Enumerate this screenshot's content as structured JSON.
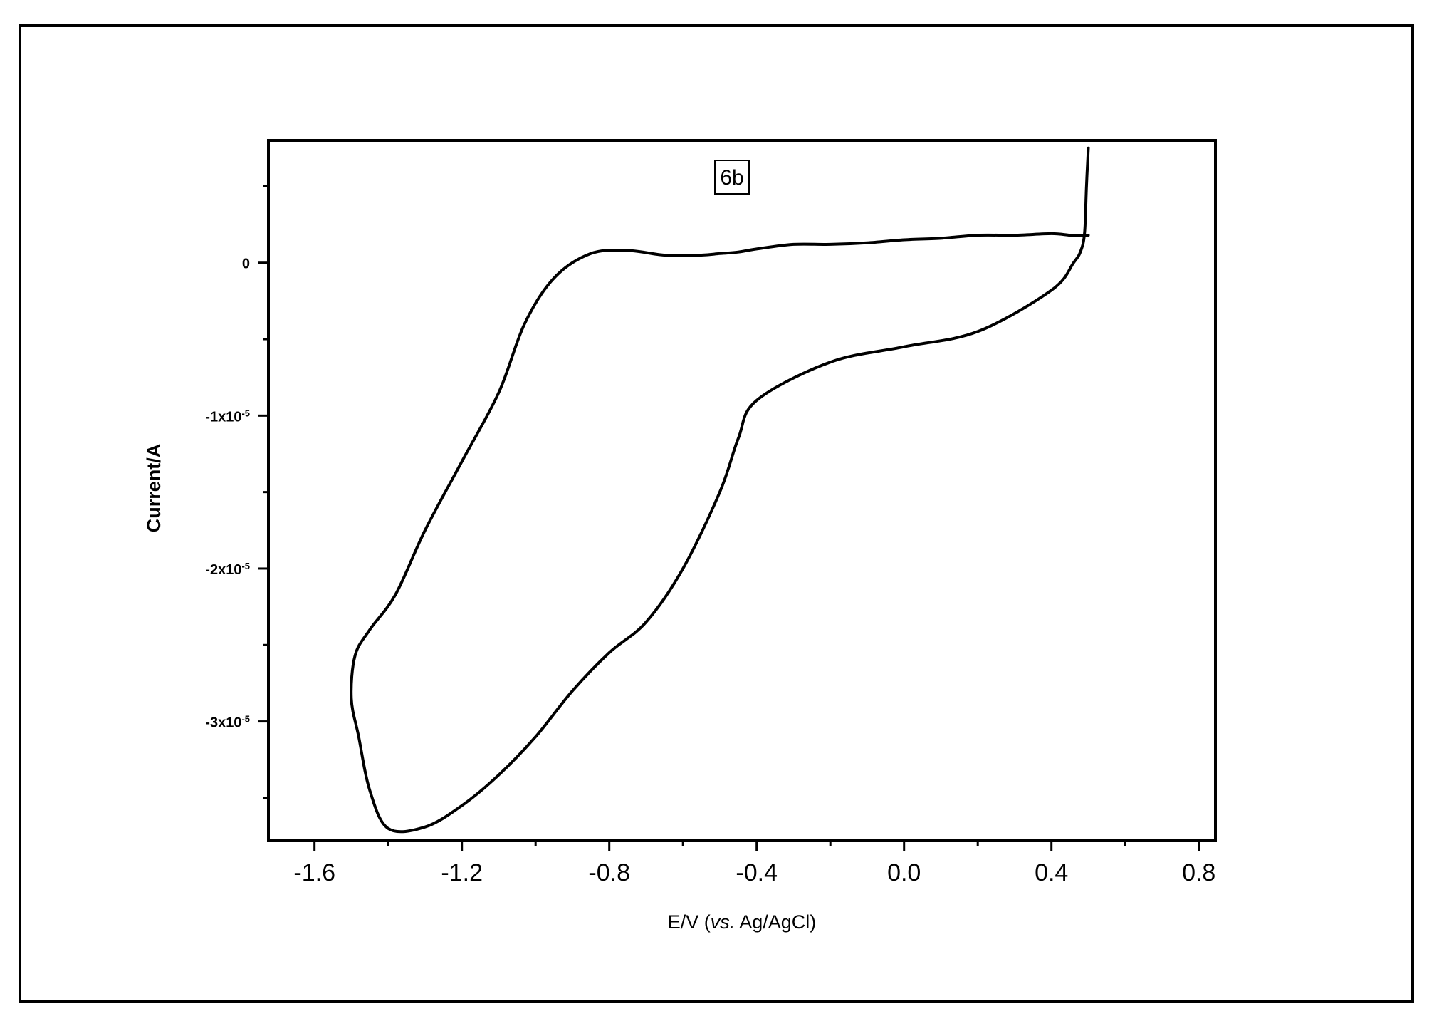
{
  "chart_data": {
    "type": "line",
    "annotation": "6b",
    "xlabel": "E/V (vs. Ag/AgCl)",
    "xlabel_parts": {
      "pre": "E/V (",
      "italic": "vs.",
      "post": " Ag/AgCl)"
    },
    "ylabel": "Current/A",
    "xlim": [
      -1.725,
      0.845
    ],
    "ylim": [
      -3.78e-05,
      8e-06
    ],
    "x_ticks": [
      {
        "value": -1.6,
        "label": "-1.6"
      },
      {
        "value": -1.2,
        "label": "-1.2"
      },
      {
        "value": -0.8,
        "label": "-0.8"
      },
      {
        "value": -0.4,
        "label": "-0.4"
      },
      {
        "value": 0.0,
        "label": "0.0"
      },
      {
        "value": 0.4,
        "label": "0.4"
      },
      {
        "value": 0.8,
        "label": "0.8"
      }
    ],
    "y_ticks": [
      {
        "value": 0,
        "mantissa": "0",
        "exp": ""
      },
      {
        "value": -1e-05,
        "mantissa": "-1x10",
        "exp": "-5"
      },
      {
        "value": -2e-05,
        "mantissa": "-2x10",
        "exp": "-5"
      },
      {
        "value": -3e-05,
        "mantissa": "-3x10",
        "exp": "-5"
      }
    ],
    "grid": false,
    "series": [
      {
        "x": [
          0.5,
          0.495,
          0.49,
          0.48,
          0.46,
          0.4,
          0.2,
          0.0,
          -0.2,
          -0.4,
          -0.45,
          -0.5,
          -0.6,
          -0.7,
          -0.8,
          -0.9,
          -1.0,
          -1.1,
          -1.2,
          -1.3,
          -1.4,
          -1.45,
          -1.48,
          -1.5,
          -1.49,
          -1.45,
          -1.38,
          -1.3,
          -1.2,
          -1.1,
          -1.03,
          -0.95,
          -0.85,
          -0.75,
          -0.65,
          -0.55,
          -0.5,
          -0.45,
          -0.4,
          -0.3,
          -0.2,
          -0.1,
          0.0,
          0.1,
          0.2,
          0.3,
          0.4,
          0.45,
          0.48,
          0.5
        ],
        "y": [
          7.5e-06,
          5e-06,
          2e-06,
          8e-07,
          0.0,
          -1.8e-06,
          -4.5e-06,
          -5.5e-06,
          -6.5e-06,
          -9e-06,
          -1.15e-05,
          -1.5e-05,
          -2e-05,
          -2.35e-05,
          -2.55e-05,
          -2.8e-05,
          -3.1e-05,
          -3.35e-05,
          -3.55e-05,
          -3.69e-05,
          -3.7e-05,
          -3.45e-05,
          -3.1e-05,
          -2.85e-05,
          -2.57e-05,
          -2.4e-05,
          -2.17e-05,
          -1.75e-05,
          -1.3e-05,
          -8.5e-06,
          -4e-06,
          -1e-06,
          6e-07,
          8e-07,
          5e-07,
          5e-07,
          6e-07,
          7e-07,
          9e-07,
          1.2e-06,
          1.2e-06,
          1.3e-06,
          1.5e-06,
          1.6e-06,
          1.8e-06,
          1.8e-06,
          1.9e-06,
          1.8e-06,
          1.8e-06,
          1.8e-06
        ],
        "color": "#000000"
      }
    ]
  }
}
